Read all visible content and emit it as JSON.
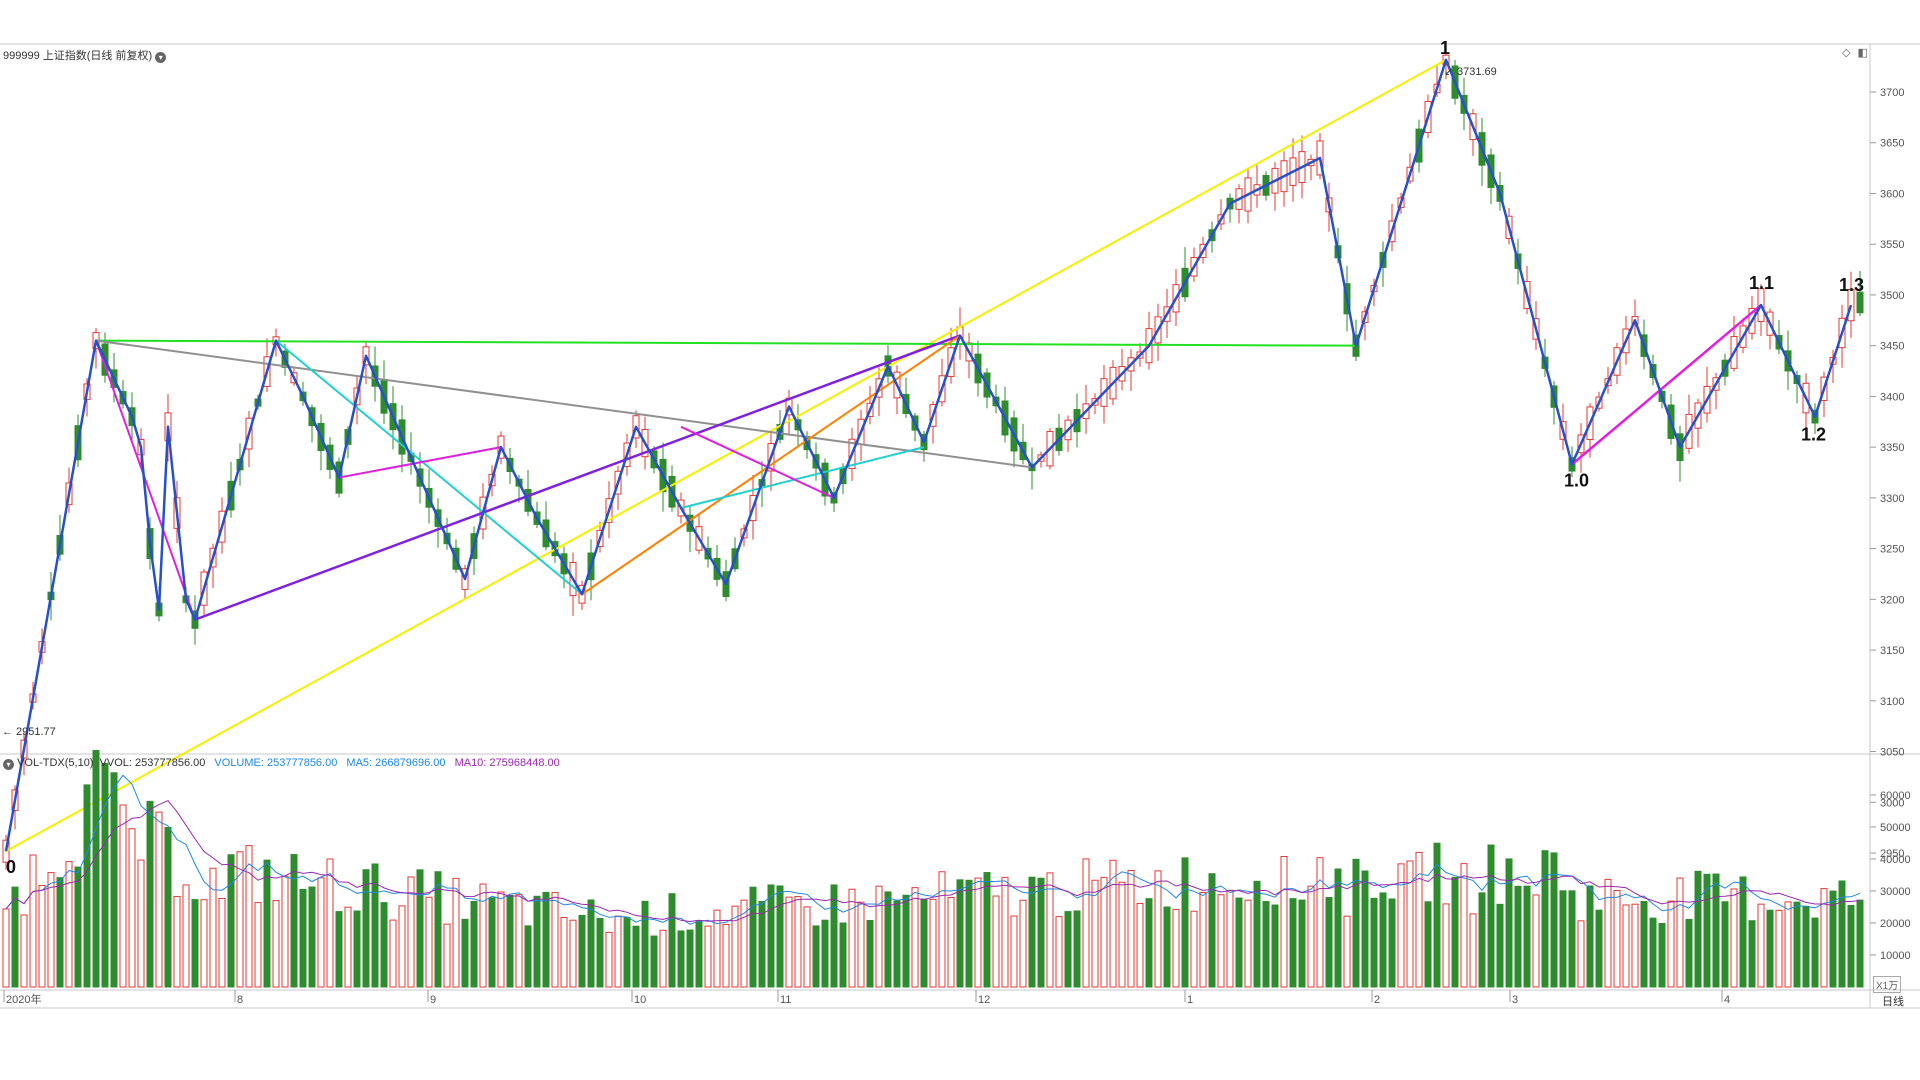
{
  "header": {
    "title": "999999 上证指数(日线 前复权)",
    "controls": [
      "◇",
      "◧"
    ]
  },
  "price_axis": {
    "ticks": [
      "3700",
      "3650",
      "3600",
      "3550",
      "3500",
      "3450",
      "3400",
      "3350",
      "3300",
      "3250",
      "3200",
      "3150",
      "3100",
      "3050",
      "3000",
      "2950"
    ]
  },
  "annotations": {
    "high_value": "3731.69",
    "low_value": "2951.77",
    "wave_labels": [
      "0",
      "1",
      "1.0",
      "1.1",
      "1.2",
      "1.3"
    ]
  },
  "volume_panel": {
    "indicator": "VOL-TDX(5,10)",
    "vvol": "VVOL: 253777856.00",
    "volume": "VOLUME: 253777856.00",
    "ma5": "MA5: 266879696.00",
    "ma10": "MA10: 275968448.00",
    "unit": "X1万",
    "ticks": [
      "60000",
      "50000",
      "40000",
      "30000",
      "20000",
      "10000"
    ]
  },
  "time_axis": {
    "labels": [
      "2020年",
      "8",
      "9",
      "10",
      "11",
      "12",
      "1",
      "2",
      "3",
      "4"
    ],
    "period": "日线"
  },
  "colors": {
    "up": "#e53935",
    "down": "#2e8b2e",
    "wave": "#2850c8",
    "ma5": "#1e88e5",
    "ma10": "#9c27b0",
    "yellow": "#f5f000",
    "green": "#22e022",
    "gray": "#909090",
    "magenta": "#e020e0",
    "cyan": "#20d0d0",
    "purple": "#8020e0",
    "orange": "#ff8000"
  },
  "chart_data": {
    "type": "candlestick",
    "wave_points": [
      {
        "x": 0,
        "y": 2951.77
      },
      {
        "x": 10,
        "y": 3455
      },
      {
        "x": 14,
        "y": 3380
      },
      {
        "x": 15,
        "y": 3350
      },
      {
        "x": 16,
        "y": 3255
      },
      {
        "x": 17,
        "y": 3190
      },
      {
        "x": 18,
        "y": 3370
      },
      {
        "x": 20,
        "y": 3200
      },
      {
        "x": 21,
        "y": 3180
      },
      {
        "x": 30,
        "y": 3455
      },
      {
        "x": 33,
        "y": 3400
      },
      {
        "x": 37,
        "y": 3320
      },
      {
        "x": 40,
        "y": 3440
      },
      {
        "x": 46,
        "y": 3320
      },
      {
        "x": 51,
        "y": 3220
      },
      {
        "x": 55,
        "y": 3350
      },
      {
        "x": 59,
        "y": 3280
      },
      {
        "x": 64,
        "y": 3205
      },
      {
        "x": 70,
        "y": 3370
      },
      {
        "x": 75,
        "y": 3290
      },
      {
        "x": 80,
        "y": 3215
      },
      {
        "x": 87,
        "y": 3390
      },
      {
        "x": 92,
        "y": 3300
      },
      {
        "x": 98,
        "y": 3430
      },
      {
        "x": 102,
        "y": 3355
      },
      {
        "x": 106,
        "y": 3460
      },
      {
        "x": 114,
        "y": 3330
      },
      {
        "x": 127,
        "y": 3450
      },
      {
        "x": 136,
        "y": 3590
      },
      {
        "x": 146,
        "y": 3635
      },
      {
        "x": 150,
        "y": 3450
      },
      {
        "x": 160,
        "y": 3731.69
      },
      {
        "x": 166,
        "y": 3600
      },
      {
        "x": 174,
        "y": 3333
      },
      {
        "x": 181,
        "y": 3475
      },
      {
        "x": 186,
        "y": 3350
      },
      {
        "x": 195,
        "y": 3490
      },
      {
        "x": 201,
        "y": 3380
      },
      {
        "x": 205,
        "y": 3490
      }
    ]
  }
}
